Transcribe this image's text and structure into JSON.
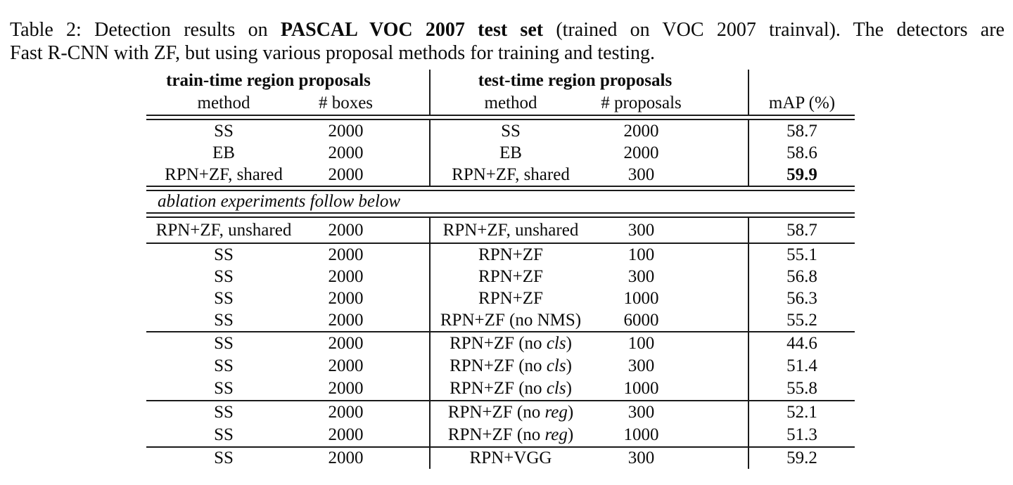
{
  "colors": {
    "background": "#ffffff",
    "text": "#0b0b0b",
    "rule": "#1a1a1a"
  },
  "caption": {
    "line1_pre": "Table 2: Detection results on ",
    "line1_bold": "PASCAL VOC 2007 test set",
    "line1_post": " (trained on VOC 2007 trainval). The detectors are",
    "line2": "Fast R-CNN with ZF, but using various proposal methods for training and testing."
  },
  "table": {
    "header": {
      "train_group": "train-time region proposals",
      "test_group": "test-time region proposals",
      "col_method_train": "method",
      "col_boxes": "# boxes",
      "col_method_test": "method",
      "col_proposals": "# proposals",
      "col_map": "mAP (%)"
    },
    "ablation_note": "ablation experiments follow below",
    "blocks": [
      {
        "rows": [
          [
            "SS",
            "2000",
            "SS",
            "2000",
            "58.7"
          ],
          [
            "EB",
            "2000",
            "EB",
            "2000",
            "58.6"
          ],
          [
            "RPN+ZF, shared",
            "2000",
            "RPN+ZF, shared",
            "300",
            "**59.9**"
          ]
        ]
      },
      {
        "rows": [
          [
            "RPN+ZF, unshared",
            "2000",
            "RPN+ZF, unshared",
            "300",
            "58.7"
          ]
        ]
      },
      {
        "rows": [
          [
            "SS",
            "2000",
            "RPN+ZF",
            "100",
            "55.1"
          ],
          [
            "SS",
            "2000",
            "RPN+ZF",
            "300",
            "56.8"
          ],
          [
            "SS",
            "2000",
            "RPN+ZF",
            "1000",
            "56.3"
          ],
          [
            "SS",
            "2000",
            "RPN+ZF (no NMS)",
            "6000",
            "55.2"
          ]
        ]
      },
      {
        "rows": [
          [
            "SS",
            "2000",
            "RPN+ZF (no *cls*)",
            "100",
            "44.6"
          ],
          [
            "SS",
            "2000",
            "RPN+ZF (no *cls*)",
            "300",
            "51.4"
          ],
          [
            "SS",
            "2000",
            "RPN+ZF (no *cls*)",
            "1000",
            "55.8"
          ]
        ]
      },
      {
        "rows": [
          [
            "SS",
            "2000",
            "RPN+ZF (no *reg*)",
            "300",
            "52.1"
          ],
          [
            "SS",
            "2000",
            "RPN+ZF (no *reg*)",
            "1000",
            "51.3"
          ]
        ]
      },
      {
        "rows": [
          [
            "SS",
            "2000",
            "RPN+VGG",
            "300",
            "59.2"
          ]
        ]
      }
    ]
  }
}
